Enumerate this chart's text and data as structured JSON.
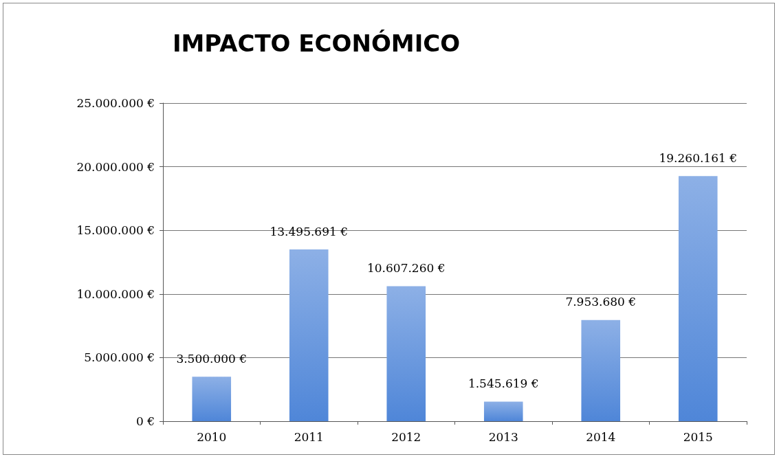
{
  "chart_data": {
    "type": "bar",
    "title": "IMPACTO ECONÓMICO",
    "categories": [
      "2010",
      "2011",
      "2012",
      "2013",
      "2014",
      "2015"
    ],
    "values": [
      3500000,
      13495691,
      10607260,
      1545619,
      7953680,
      19260161
    ],
    "value_labels": [
      "3.500.000 €",
      "13.495.691 €",
      "10.607.260 €",
      "1.545.619 €",
      "7.953.680 €",
      "19.260.161 €"
    ],
    "color": "#4f86d8",
    "ylim": [
      0,
      25000000
    ],
    "yticks": [
      {
        "value": 0,
        "label": "0 €"
      },
      {
        "value": 5000000,
        "label": "5.000.000 €"
      },
      {
        "value": 10000000,
        "label": "10.000.000 €"
      },
      {
        "value": 15000000,
        "label": "15.000.000 €"
      },
      {
        "value": 20000000,
        "label": "20.000.000 €"
      },
      {
        "value": 25000000,
        "label": "25.000.000 €"
      }
    ],
    "grid": "y"
  }
}
